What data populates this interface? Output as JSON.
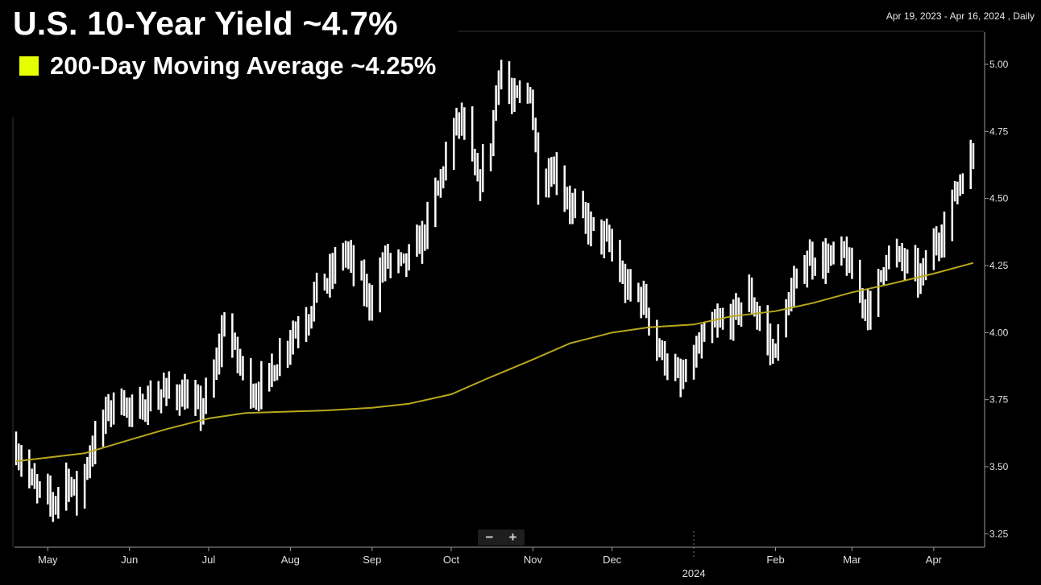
{
  "header": {
    "title": "U.S. 10-Year Yield ~4.7%",
    "legend_label": "200-Day Moving Average ~4.25%",
    "legend_color": "#e6ff00",
    "date_range": "Apr 19, 2023 - Apr 16, 2024 , Daily"
  },
  "zoom": {
    "minus": "−",
    "plus": "+"
  },
  "chart_data": {
    "type": "bar",
    "bar_style": "high-low",
    "bar_color": "#ffffff",
    "ma_color": "#b8a81c",
    "ylim": [
      3.2,
      5.12
    ],
    "yticks": [
      "5.00",
      "4.75",
      "4.50",
      "4.25",
      "4.00",
      "3.75",
      "3.50",
      "3.25"
    ],
    "x_range": [
      "2023-04-19",
      "2024-04-16"
    ],
    "months": [
      {
        "label": "May",
        "date": "2023-05-01"
      },
      {
        "label": "Jun",
        "date": "2023-06-01"
      },
      {
        "label": "Jul",
        "date": "2023-07-01"
      },
      {
        "label": "Aug",
        "date": "2023-08-01"
      },
      {
        "label": "Sep",
        "date": "2023-09-01"
      },
      {
        "label": "Oct",
        "date": "2023-10-01"
      },
      {
        "label": "Nov",
        "date": "2023-11-01"
      },
      {
        "label": "Dec",
        "date": "2023-12-01"
      },
      {
        "label": "Feb",
        "date": "2024-02-01"
      },
      {
        "label": "Mar",
        "date": "2024-03-01"
      },
      {
        "label": "Apr",
        "date": "2024-04-01"
      }
    ],
    "year_label": {
      "label": "2024",
      "date": "2024-01-01"
    },
    "yield_key_points": [
      [
        "2023-04-19",
        3.57
      ],
      [
        "2023-04-26",
        3.42
      ],
      [
        "2023-05-03",
        3.36
      ],
      [
        "2023-05-08",
        3.46
      ],
      [
        "2023-05-12",
        3.39
      ],
      [
        "2023-05-17",
        3.55
      ],
      [
        "2023-05-24",
        3.72
      ],
      [
        "2023-05-30",
        3.75
      ],
      [
        "2023-06-02",
        3.68
      ],
      [
        "2023-06-07",
        3.74
      ],
      [
        "2023-06-14",
        3.78
      ],
      [
        "2023-06-21",
        3.77
      ],
      [
        "2023-06-28",
        3.71
      ],
      [
        "2023-07-03",
        3.84
      ],
      [
        "2023-07-07",
        4.05
      ],
      [
        "2023-07-12",
        3.9
      ],
      [
        "2023-07-18",
        3.77
      ],
      [
        "2023-07-25",
        3.85
      ],
      [
        "2023-08-01",
        3.99
      ],
      [
        "2023-08-08",
        4.07
      ],
      [
        "2023-08-11",
        4.17
      ],
      [
        "2023-08-15",
        4.19
      ],
      [
        "2023-08-21",
        4.31
      ],
      [
        "2023-08-24",
        4.26
      ],
      [
        "2023-08-31",
        4.12
      ],
      [
        "2023-09-06",
        4.27
      ],
      [
        "2023-09-13",
        4.25
      ],
      [
        "2023-09-20",
        4.35
      ],
      [
        "2023-09-26",
        4.54
      ],
      [
        "2023-10-03",
        4.79
      ],
      [
        "2023-10-06",
        4.76
      ],
      [
        "2023-10-11",
        4.55
      ],
      [
        "2023-10-16",
        4.71
      ],
      [
        "2023-10-19",
        4.99
      ],
      [
        "2023-10-24",
        4.86
      ],
      [
        "2023-10-31",
        4.9
      ],
      [
        "2023-11-03",
        4.57
      ],
      [
        "2023-11-09",
        4.61
      ],
      [
        "2023-11-15",
        4.48
      ],
      [
        "2023-11-22",
        4.4
      ],
      [
        "2023-11-30",
        4.33
      ],
      [
        "2023-12-06",
        4.17
      ],
      [
        "2023-12-13",
        4.12
      ],
      [
        "2023-12-18",
        3.95
      ],
      [
        "2023-12-27",
        3.81
      ],
      [
        "2024-01-02",
        3.93
      ],
      [
        "2024-01-08",
        4.02
      ],
      [
        "2024-01-16",
        4.06
      ],
      [
        "2024-01-22",
        4.14
      ],
      [
        "2024-01-31",
        3.92
      ],
      [
        "2024-02-06",
        4.12
      ],
      [
        "2024-02-13",
        4.28
      ],
      [
        "2024-02-20",
        4.27
      ],
      [
        "2024-02-27",
        4.29
      ],
      [
        "2024-03-05",
        4.12
      ],
      [
        "2024-03-08",
        4.08
      ],
      [
        "2024-03-14",
        4.29
      ],
      [
        "2024-03-20",
        4.27
      ],
      [
        "2024-03-27",
        4.2
      ],
      [
        "2024-04-01",
        4.33
      ],
      [
        "2024-04-05",
        4.39
      ],
      [
        "2024-04-10",
        4.55
      ],
      [
        "2024-04-16",
        4.66
      ]
    ],
    "moving_average_200d": [
      [
        "2023-04-19",
        3.52
      ],
      [
        "2023-05-15",
        3.55
      ],
      [
        "2023-06-01",
        3.6
      ],
      [
        "2023-06-15",
        3.64
      ],
      [
        "2023-07-01",
        3.68
      ],
      [
        "2023-07-15",
        3.7
      ],
      [
        "2023-08-15",
        3.71
      ],
      [
        "2023-09-01",
        3.72
      ],
      [
        "2023-09-15",
        3.735
      ],
      [
        "2023-10-01",
        3.77
      ],
      [
        "2023-10-15",
        3.83
      ],
      [
        "2023-11-01",
        3.9
      ],
      [
        "2023-11-15",
        3.96
      ],
      [
        "2023-12-01",
        4.0
      ],
      [
        "2023-12-15",
        4.02
      ],
      [
        "2024-01-01",
        4.03
      ],
      [
        "2024-01-15",
        4.06
      ],
      [
        "2024-02-01",
        4.08
      ],
      [
        "2024-02-15",
        4.11
      ],
      [
        "2024-03-01",
        4.15
      ],
      [
        "2024-03-15",
        4.18
      ],
      [
        "2024-04-01",
        4.22
      ],
      [
        "2024-04-16",
        4.26
      ]
    ]
  }
}
